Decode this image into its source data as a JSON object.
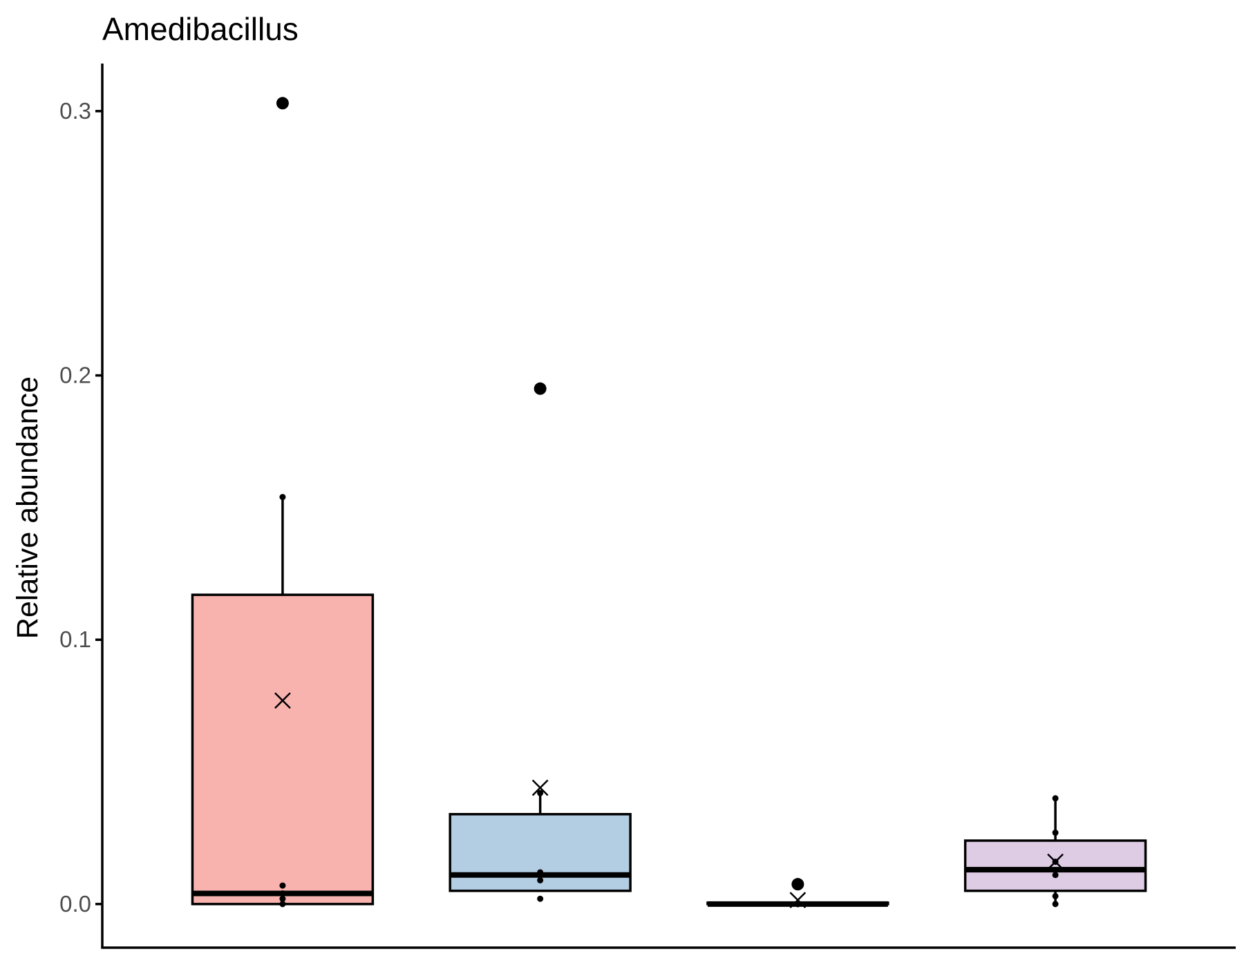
{
  "chart_data": {
    "type": "boxplot",
    "title": "Amedibacillus",
    "xlabel": "",
    "ylabel": "Relative abundance",
    "ylim": [
      -0.0165,
      0.318
    ],
    "yticks": [
      {
        "value": 0.0,
        "label": "0.0"
      },
      {
        "value": 0.1,
        "label": "0.1"
      },
      {
        "value": 0.2,
        "label": "0.2"
      },
      {
        "value": 0.3,
        "label": "0.3"
      }
    ],
    "grid": false,
    "legend": "none",
    "groups": [
      {
        "fill": "#f9b3ae",
        "whisker_low": 0.0,
        "q1": 0.0,
        "median": 0.004,
        "q3": 0.117,
        "whisker_high": 0.154,
        "mean": 0.077,
        "outliers": [
          0.303
        ],
        "points": [
          0.0,
          0.002,
          0.004,
          0.007,
          0.154,
          0.303
        ]
      },
      {
        "fill": "#b3cde3",
        "whisker_low": 0.005,
        "q1": 0.005,
        "median": 0.011,
        "q3": 0.034,
        "whisker_high": 0.042,
        "mean": 0.044,
        "outliers": [
          0.195
        ],
        "points": [
          0.002,
          0.009,
          0.011,
          0.012,
          0.042,
          0.195
        ]
      },
      {
        "fill": "#cfe6c8",
        "whisker_low": 0.0,
        "q1": 0.0,
        "median": 0.0,
        "q3": 0.0005,
        "whisker_high": 0.0005,
        "mean": 0.0015,
        "outliers": [
          0.0075
        ],
        "points": [
          0.0,
          0.0,
          0.0,
          0.0,
          0.0,
          0.0075
        ]
      },
      {
        "fill": "#decbe4",
        "whisker_low": 0.0,
        "q1": 0.005,
        "median": 0.013,
        "q3": 0.024,
        "whisker_high": 0.04,
        "mean": 0.016,
        "outliers": [],
        "points": [
          0.0,
          0.003,
          0.011,
          0.016,
          0.027,
          0.04
        ]
      }
    ]
  }
}
